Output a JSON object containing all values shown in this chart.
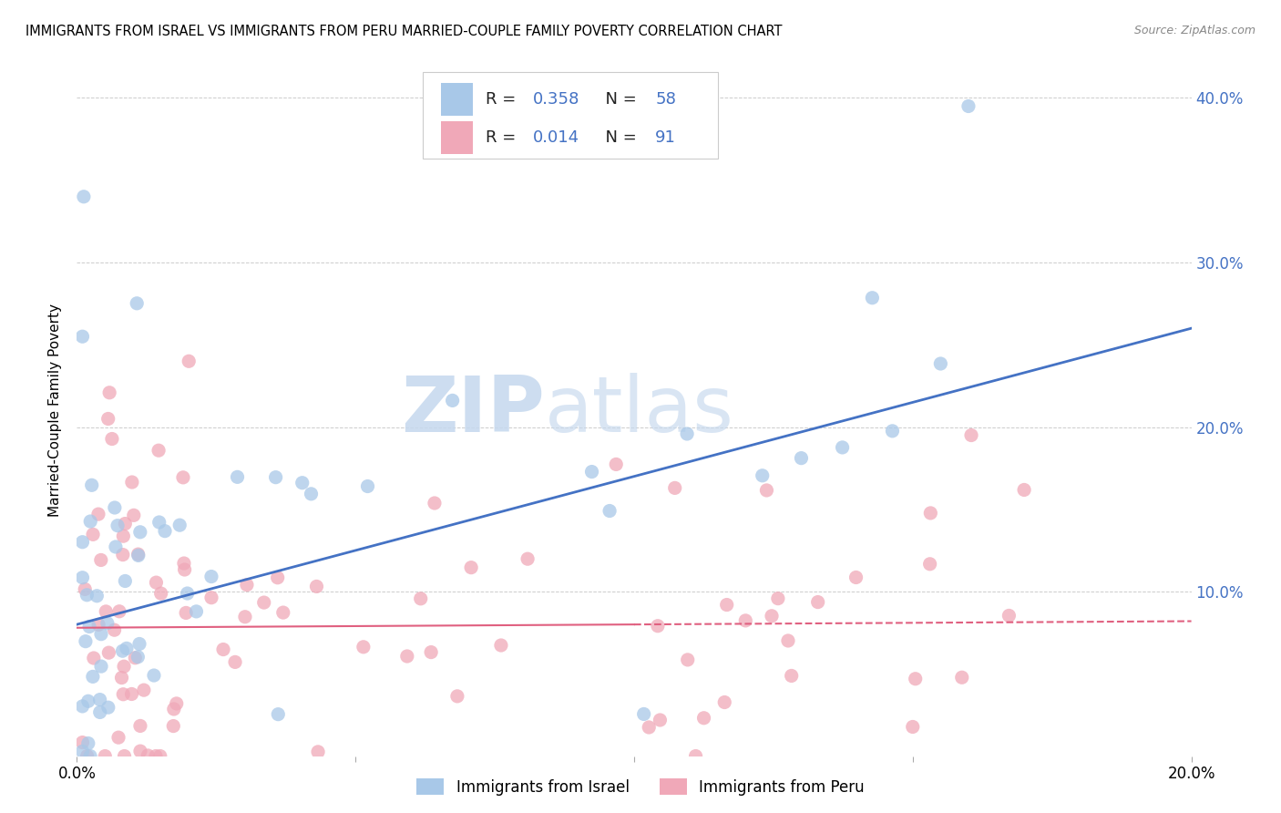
{
  "title": "IMMIGRANTS FROM ISRAEL VS IMMIGRANTS FROM PERU MARRIED-COUPLE FAMILY POVERTY CORRELATION CHART",
  "source": "Source: ZipAtlas.com",
  "ylabel": "Married-Couple Family Poverty",
  "xlim": [
    0.0,
    0.2
  ],
  "ylim": [
    0.0,
    0.42
  ],
  "israel_color": "#a8c8e8",
  "peru_color": "#f0a8b8",
  "israel_line_color": "#4472c4",
  "peru_line_color": "#e06080",
  "R_israel": 0.358,
  "N_israel": 58,
  "R_peru": 0.014,
  "N_peru": 91,
  "watermark_zip": "ZIP",
  "watermark_atlas": "atlas",
  "background_color": "#ffffff",
  "grid_color": "#cccccc",
  "israel_line_y0": 0.08,
  "israel_line_y1": 0.26,
  "peru_line_y0": 0.078,
  "peru_line_y1": 0.082,
  "peru_line_solid_x": 0.1
}
